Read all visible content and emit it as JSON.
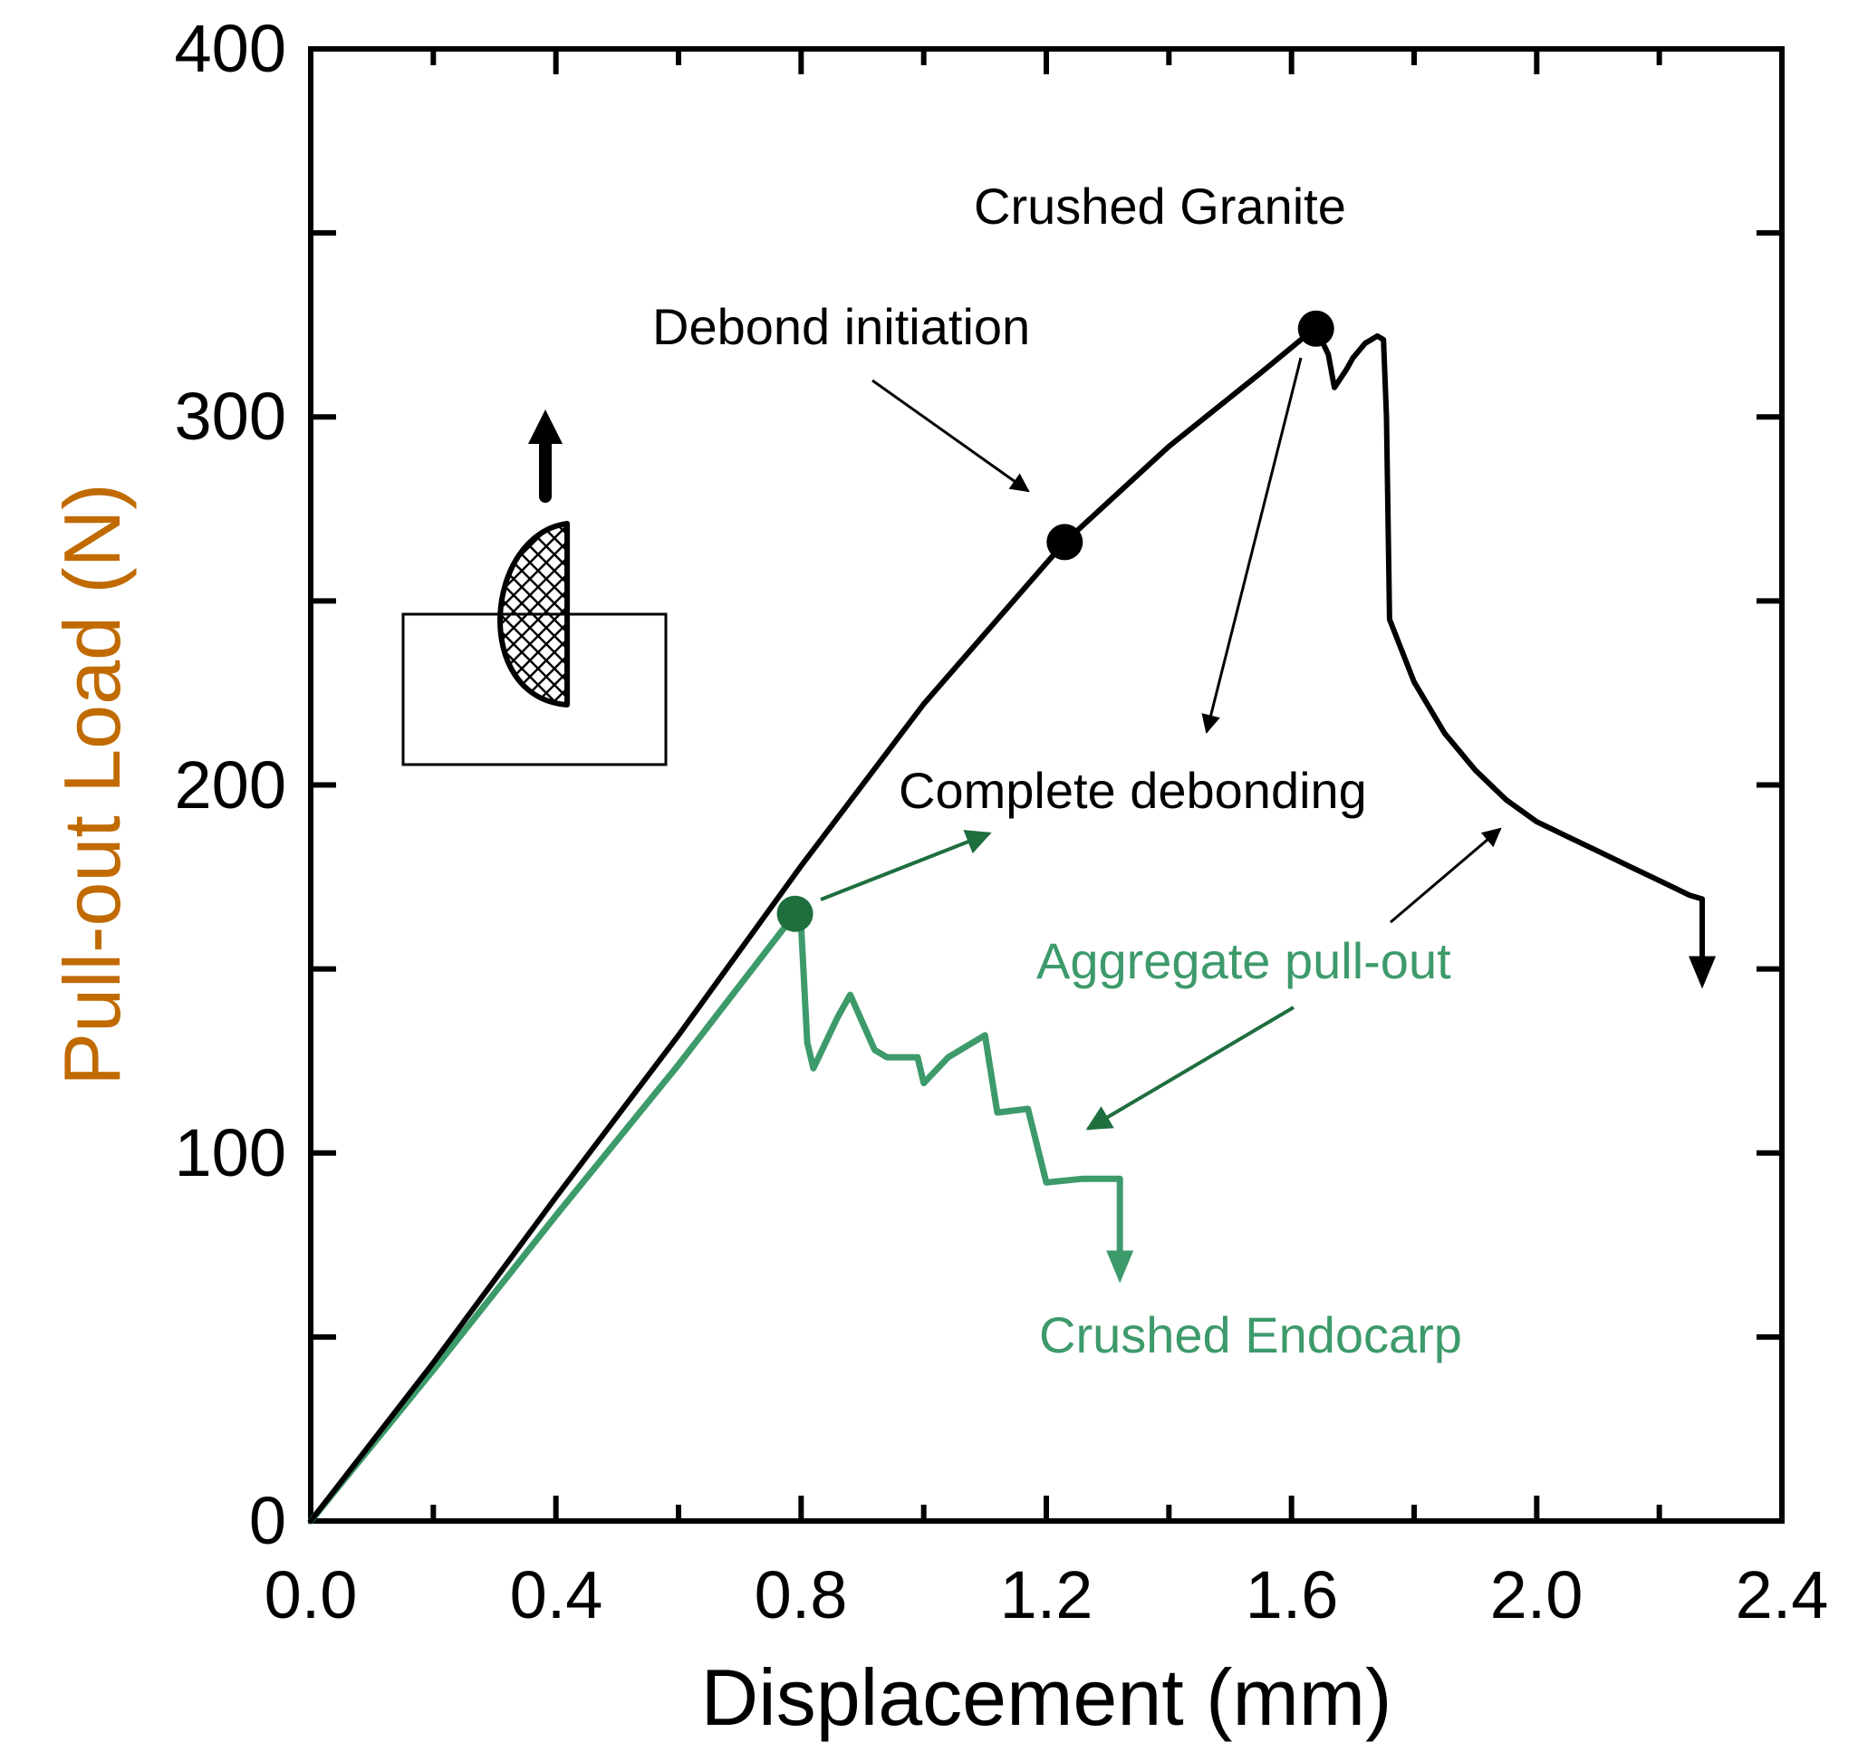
{
  "chart_data": {
    "type": "line",
    "title": "",
    "xlabel": "Displacement (mm)",
    "ylabel": "Pull-out Load (N)",
    "xlim": [
      0,
      2.4
    ],
    "ylim": [
      0,
      400
    ],
    "x_ticks": [
      "0.0",
      "0.4",
      "0.8",
      "1.2",
      "1.6",
      "2.0",
      "2.4"
    ],
    "y_ticks": [
      "0",
      "100",
      "200",
      "300",
      "400"
    ],
    "grid": false,
    "colors": {
      "axis": "#000000",
      "granite": "#000000",
      "endocarp": "#3d9a6a",
      "endocarp_dark": "#1e6e3e",
      "ylabel": "#c06a00"
    },
    "series": [
      {
        "name": "Crushed Granite",
        "points": [
          [
            0,
            0
          ],
          [
            0.2,
            43
          ],
          [
            0.4,
            88
          ],
          [
            0.6,
            132
          ],
          [
            0.8,
            178
          ],
          [
            1.0,
            222
          ],
          [
            1.23,
            266
          ],
          [
            1.4,
            292
          ],
          [
            1.55,
            312
          ],
          [
            1.63,
            323
          ],
          [
            1.64,
            324
          ],
          [
            1.66,
            317
          ],
          [
            1.67,
            308
          ],
          [
            1.69,
            313
          ],
          [
            1.7,
            316
          ],
          [
            1.72,
            320
          ],
          [
            1.74,
            322
          ],
          [
            1.75,
            321
          ],
          [
            1.755,
            300
          ],
          [
            1.76,
            245
          ],
          [
            1.8,
            228
          ],
          [
            1.85,
            214
          ],
          [
            1.9,
            204
          ],
          [
            1.95,
            196
          ],
          [
            2.0,
            190
          ],
          [
            2.05,
            186
          ],
          [
            2.1,
            182
          ],
          [
            2.15,
            178
          ],
          [
            2.2,
            174
          ],
          [
            2.25,
            170
          ],
          [
            2.27,
            169
          ],
          [
            2.27,
            152
          ]
        ]
      },
      {
        "name": "Crushed Endocarp",
        "points": [
          [
            0,
            0
          ],
          [
            0.2,
            41
          ],
          [
            0.4,
            83
          ],
          [
            0.6,
            124
          ],
          [
            0.79,
            165
          ],
          [
            0.8,
            162
          ],
          [
            0.81,
            130
          ],
          [
            0.82,
            123
          ],
          [
            0.86,
            137
          ],
          [
            0.88,
            143
          ],
          [
            0.92,
            128
          ],
          [
            0.94,
            126
          ],
          [
            0.99,
            126
          ],
          [
            1.0,
            119
          ],
          [
            1.04,
            126
          ],
          [
            1.1,
            132
          ],
          [
            1.12,
            111
          ],
          [
            1.17,
            112
          ],
          [
            1.2,
            92
          ],
          [
            1.26,
            93
          ],
          [
            1.32,
            93
          ],
          [
            1.32,
            72
          ]
        ]
      }
    ],
    "markers": [
      {
        "name": "debond-initiation-marker",
        "x": 1.23,
        "y": 266,
        "series": "Crushed Granite"
      },
      {
        "name": "complete-debonding-marker",
        "x": 1.64,
        "y": 324,
        "series": "Crushed Granite"
      },
      {
        "name": "endocarp-debond-marker",
        "x": 0.79,
        "y": 165,
        "series": "Crushed Endocarp"
      }
    ],
    "annotations": [
      {
        "name": "crushed-granite-label",
        "text": "Crushed Granite"
      },
      {
        "name": "debond-initiation-label",
        "text": "Debond initiation"
      },
      {
        "name": "complete-debonding-label",
        "text": "Complete debonding"
      },
      {
        "name": "aggregate-pullout-label",
        "text": "Aggregate pull-out"
      },
      {
        "name": "crushed-endocarp-label",
        "text": "Crushed Endocarp"
      }
    ]
  }
}
